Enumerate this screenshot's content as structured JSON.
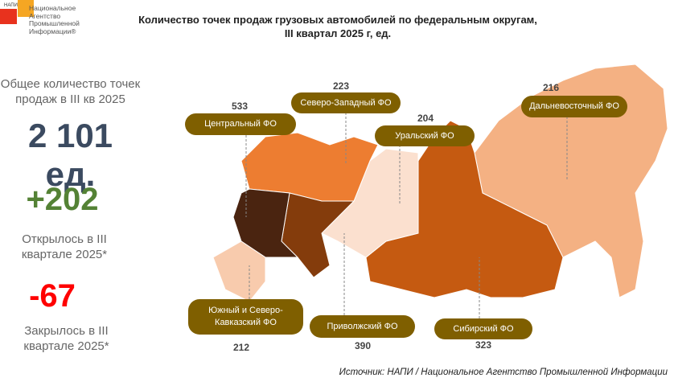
{
  "logo": {
    "abbr": "НАПИ",
    "line1": "Национальное",
    "line2": "Агентство",
    "line3": "Промышленной",
    "line4": "Информации®"
  },
  "title": {
    "line1": "Количество точек продаж грузовых автомобилей по федеральным округам,",
    "line2": "III квартал 2025 г, ед."
  },
  "summary": {
    "total_label": "Общее количество точек продаж в III кв 2025",
    "total_value": "2 101 ед.",
    "opened_value": "+202",
    "opened_label": "Открылось в III квартале 2025*",
    "closed_value": "-67",
    "closed_label": "Закрылось в III квартале 2025*"
  },
  "districts": [
    {
      "name": "Центральный ФО",
      "value": "533",
      "color": "#4a2410"
    },
    {
      "name": "Северо-Западный ФО",
      "value": "223",
      "color": "#ed7d31"
    },
    {
      "name": "Уральский ФО",
      "value": "204",
      "color": "#fbe0cf"
    },
    {
      "name": "Дальневосточный ФО",
      "value": "216",
      "color": "#f4b183"
    },
    {
      "name": "Южный и Северо-Кавказский ФО",
      "value": "212",
      "color": "#f8cbad"
    },
    {
      "name": "Приволжский ФО",
      "value": "390",
      "color": "#843c0c"
    },
    {
      "name": "Сибирский ФО",
      "value": "323",
      "color": "#c55a11"
    }
  ],
  "source": "Источник: НАПИ / Национальное Агентство Промышленной Информации"
}
